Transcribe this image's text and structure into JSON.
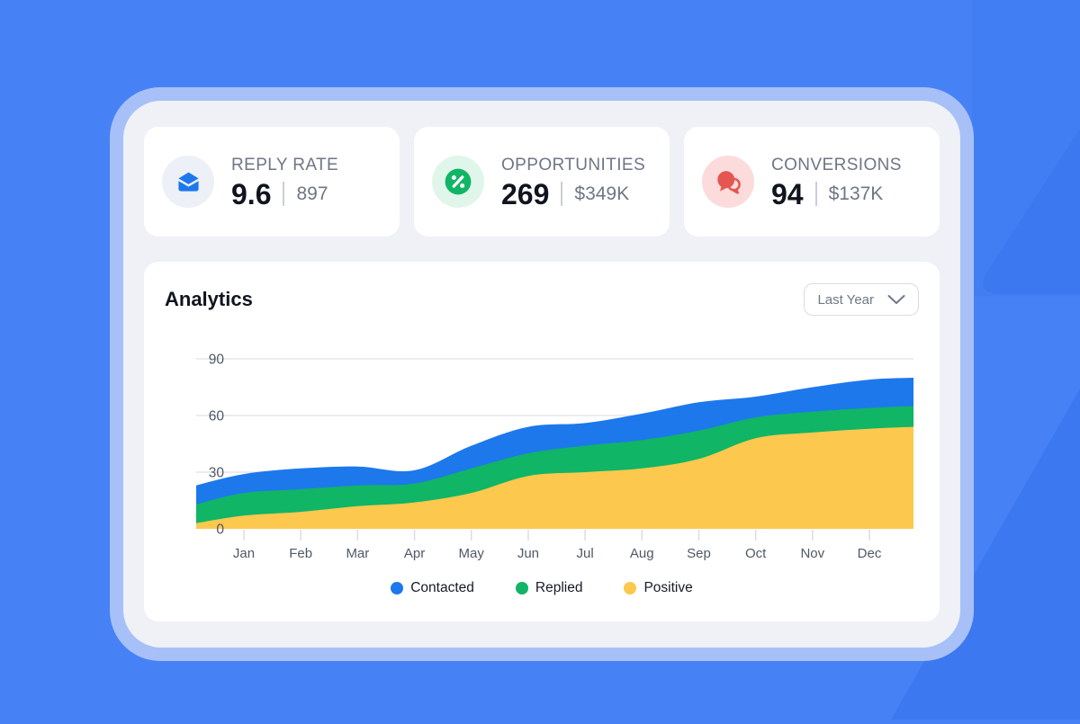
{
  "theme": {
    "background": "#4682F5",
    "background_shape": "#3C78F0",
    "frame": "#A8C0F8",
    "panel": "#EFF1F6",
    "card": "#FFFFFF"
  },
  "stats": [
    {
      "label": "REPLY RATE",
      "value": "9.6",
      "secondary": "897",
      "icon": "mail-icon",
      "accent": "#1D78EC",
      "icon_bg": "#EDF0F6"
    },
    {
      "label": "OPPORTUNITIES",
      "value": "269",
      "secondary": "$349K",
      "icon": "percent-icon",
      "accent": "#10B565",
      "icon_bg": "#E0F6EB"
    },
    {
      "label": "CONVERSIONS",
      "value": "94",
      "secondary": "$137K",
      "icon": "chat-icon",
      "accent": "#E4564F",
      "icon_bg": "#FBDBDB"
    }
  ],
  "analytics": {
    "title": "Analytics",
    "filter_label": "Last Year",
    "filter_icon": "chevron-down-icon"
  },
  "chart_data": {
    "type": "area",
    "stacked": true,
    "title": "Analytics",
    "xlabel": "",
    "ylabel": "",
    "categories": [
      "Jan",
      "Feb",
      "Mar",
      "Apr",
      "May",
      "Jun",
      "Jul",
      "Aug",
      "Sep",
      "Oct",
      "Nov",
      "Dec"
    ],
    "series": [
      {
        "name": "Contacted",
        "color": "#1D78EC",
        "values": [
          10,
          11,
          10,
          7,
          12,
          14,
          12,
          14,
          15,
          11,
          13,
          15
        ]
      },
      {
        "name": "Replied",
        "color": "#10B565",
        "values": [
          12,
          12,
          11,
          10,
          13,
          12,
          14,
          15,
          15,
          11,
          11,
          11
        ]
      },
      {
        "name": "Positive",
        "color": "#FCC84E",
        "values": [
          7,
          9,
          12,
          14,
          19,
          28,
          30,
          32,
          37,
          48,
          51,
          53
        ]
      }
    ],
    "stack_order_bottom_to_top": [
      "Positive",
      "Replied",
      "Contacted"
    ],
    "edge_start": {
      "Positive": 3,
      "Replied": 10,
      "Contacted": 10
    },
    "edge_end": {
      "Positive": 54,
      "Replied": 11,
      "Contacted": 15
    },
    "yticks": [
      0,
      30,
      60,
      90
    ],
    "ylim": [
      0,
      90
    ],
    "grid": true,
    "grid_color": "#E4E7EB",
    "axis_text_color": "#4F5866",
    "tick_color": "#D9DDE3",
    "legend_position": "bottom"
  }
}
